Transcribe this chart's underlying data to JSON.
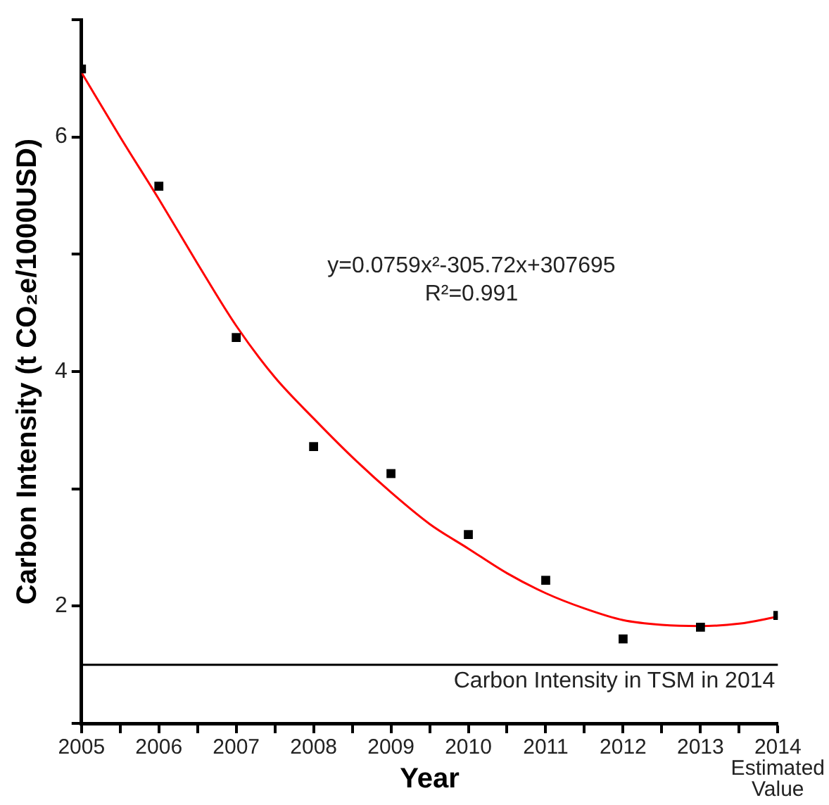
{
  "chart_data": {
    "type": "scatter",
    "xlabel": "Year",
    "ylabel": "Carbon Intensity (t CO₂e/1000USD)",
    "xlim": [
      2005,
      2014
    ],
    "ylim": [
      1,
      7
    ],
    "xticks": [
      2005,
      {
        "value": 2005.5,
        "label": null
      },
      2006,
      {
        "value": 2006.5,
        "label": null
      },
      2007,
      {
        "value": 2007.5,
        "label": null
      },
      2008,
      {
        "value": 2008.5,
        "label": null
      },
      2009,
      {
        "value": 2009.5,
        "label": null
      },
      2010,
      {
        "value": 2010.5,
        "label": null
      },
      2011,
      {
        "value": 2011.5,
        "label": null
      },
      2012,
      {
        "value": 2012.5,
        "label": null
      },
      2013,
      {
        "value": 2013.5,
        "label": null
      },
      {
        "value": 2014,
        "label": "2014\nEstimated\nValue"
      }
    ],
    "yticks": [
      {
        "value": 1,
        "label": null
      },
      2,
      {
        "value": 3,
        "label": null
      },
      4,
      {
        "value": 5,
        "label": null
      },
      6,
      {
        "value": 7,
        "label": null
      }
    ],
    "grid": false,
    "legend": false,
    "marker": "square",
    "series": [
      {
        "color": "#000000",
        "x": [
          2005,
          2006,
          2007,
          2008,
          2009,
          2010,
          2011,
          2012,
          2013,
          2014
        ],
        "values": [
          6.58,
          5.58,
          4.29,
          3.36,
          3.13,
          2.61,
          2.22,
          1.72,
          1.82,
          1.92
        ]
      },
      {
        "type": "line",
        "color": "#ff0000",
        "marker": "none",
        "x": [
          2005,
          2005.5,
          2006,
          2006.5,
          2007,
          2007.5,
          2008,
          2008.5,
          2009,
          2009.5,
          2010,
          2010.5,
          2011,
          2011.5,
          2012,
          2012.5,
          2013,
          2013.5,
          2014
        ],
        "values": [
          6.55,
          6.0,
          5.47,
          4.92,
          4.39,
          3.95,
          3.6,
          3.27,
          2.97,
          2.7,
          2.49,
          2.28,
          2.11,
          1.98,
          1.88,
          1.84,
          1.83,
          1.85,
          1.91
        ]
      }
    ],
    "ref_lines": [
      {
        "axis": "y",
        "value": 1.5,
        "label": "Carbon Intensity in TSM in 2014",
        "color": "#000000"
      }
    ],
    "annotations": [
      "y=0.0759x²-305.72x+307695\nR²=0.991"
    ]
  }
}
